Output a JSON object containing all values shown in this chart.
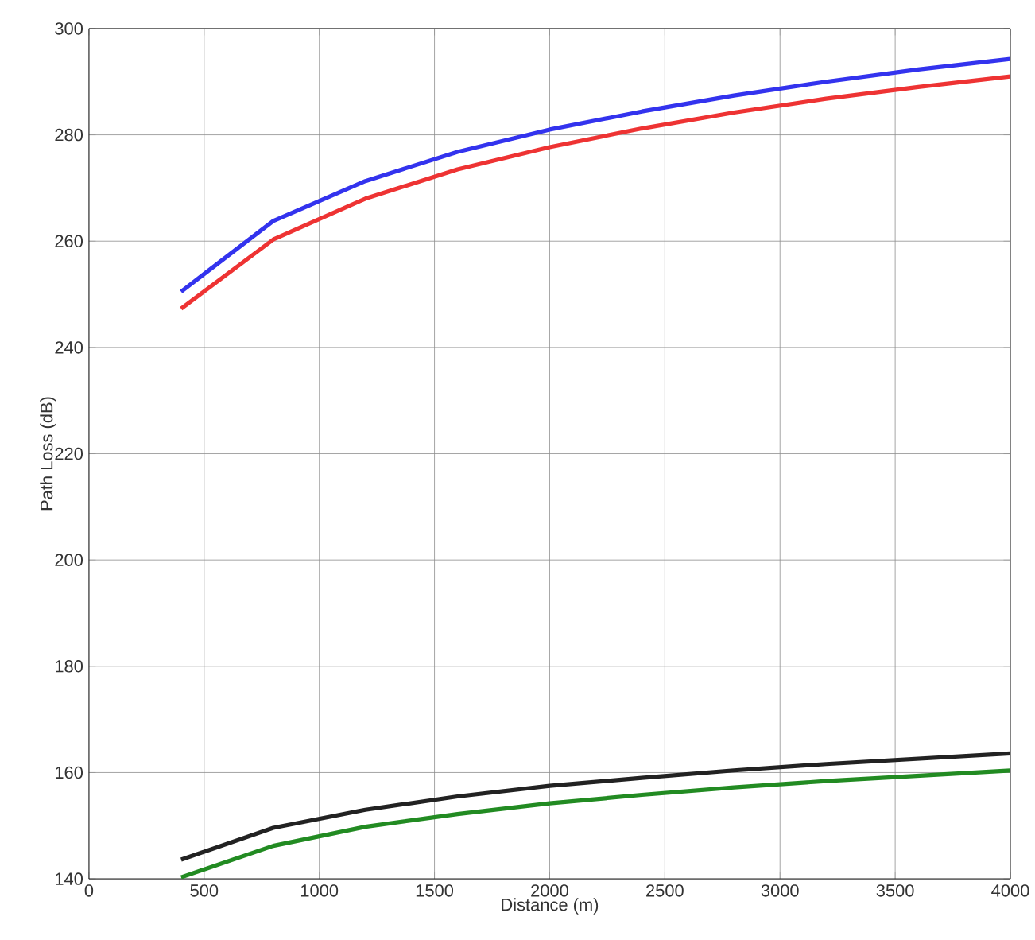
{
  "chart_data": {
    "type": "line",
    "xlabel": "Distance (m)",
    "ylabel": "Path Loss (dB)",
    "x": [
      400,
      800,
      1200,
      1600,
      2000,
      2400,
      2800,
      3200,
      3600,
      4000
    ],
    "series": [
      {
        "color": "#3333ee",
        "values": [
          250.5,
          263.8,
          271.3,
          276.8,
          281,
          284.4,
          287.4,
          290,
          292.3,
          294.3
        ]
      },
      {
        "color": "#ee3333",
        "values": [
          247.3,
          260.3,
          268,
          273.5,
          277.7,
          281.2,
          284.2,
          286.8,
          289,
          291
        ]
      },
      {
        "color": "#222222",
        "values": [
          143.6,
          149.6,
          153,
          155.5,
          157.5,
          159,
          160.4,
          161.6,
          162.6,
          163.6
        ]
      },
      {
        "color": "#228b22",
        "values": [
          140.3,
          146.2,
          149.8,
          152.2,
          154.2,
          155.8,
          157.2,
          158.4,
          159.4,
          160.4
        ]
      }
    ],
    "xlim": [
      0,
      4000
    ],
    "ylim": [
      140,
      300
    ],
    "xticks": [
      0,
      500,
      1000,
      1500,
      2000,
      2500,
      3000,
      3500,
      4000
    ],
    "yticks": [
      140,
      160,
      180,
      200,
      220,
      240,
      260,
      280,
      300
    ],
    "grid": true,
    "line_style": "solid",
    "marker": "none"
  }
}
